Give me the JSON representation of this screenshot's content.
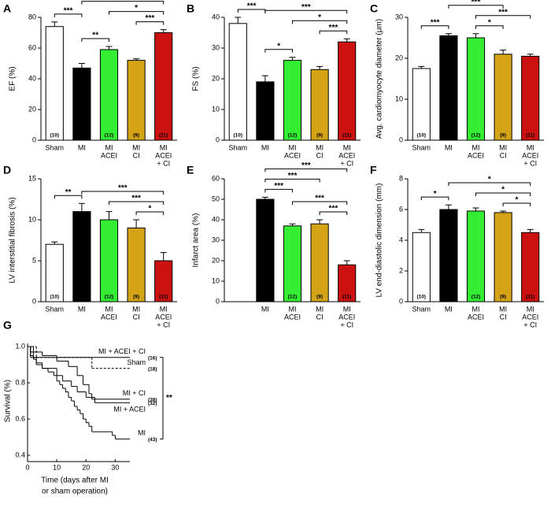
{
  "chart_data": [
    {
      "type": "bar",
      "panel": "A",
      "ylabel": "EF (%)",
      "categories": [
        [
          "Sham"
        ],
        [
          "MI"
        ],
        [
          "MI",
          "ACEI"
        ],
        [
          "MI",
          "CI"
        ],
        [
          "MI",
          "ACEI",
          "+ CI"
        ]
      ],
      "values": [
        74,
        47,
        59,
        52,
        70
      ],
      "errors": [
        3,
        3,
        2,
        1,
        2
      ],
      "colors": [
        "#ffffff",
        "#000000",
        "#33ee33",
        "#d4a316",
        "#cc1111"
      ],
      "n_labels": [
        "(10)",
        "(16)",
        "(12)",
        "(9)",
        "(11)"
      ],
      "brackets": [
        {
          "between": [
            0,
            1
          ],
          "label": "***"
        },
        {
          "between": [
            1,
            2
          ],
          "label": "**"
        },
        {
          "between": [
            3,
            4
          ],
          "label": "***"
        },
        {
          "between": [
            2,
            4
          ],
          "label": "*"
        },
        {
          "between": [
            1,
            4
          ],
          "label": "***"
        }
      ],
      "ylim": [
        0,
        80
      ],
      "yticks": [
        0,
        20,
        40,
        60,
        80
      ]
    },
    {
      "type": "bar",
      "panel": "B",
      "ylabel": "FS (%)",
      "categories": [
        [
          "Sham"
        ],
        [
          "MI"
        ],
        [
          "MI",
          "ACEI"
        ],
        [
          "MI",
          "CI"
        ],
        [
          "MI",
          "ACEI",
          "+ CI"
        ]
      ],
      "values": [
        38,
        19,
        26,
        23,
        32
      ],
      "errors": [
        2,
        2,
        1,
        1,
        1
      ],
      "colors": [
        "#ffffff",
        "#000000",
        "#33ee33",
        "#d4a316",
        "#cc1111"
      ],
      "n_labels": [
        "(10)",
        "(16)",
        "(12)",
        "(9)",
        "(11)"
      ],
      "brackets": [
        {
          "between": [
            0,
            1
          ],
          "label": "***"
        },
        {
          "between": [
            1,
            2
          ],
          "label": "*"
        },
        {
          "between": [
            3,
            4
          ],
          "label": "***"
        },
        {
          "between": [
            2,
            4
          ],
          "label": "*"
        },
        {
          "between": [
            1,
            4
          ],
          "label": "***"
        }
      ],
      "ylim": [
        0,
        40
      ],
      "yticks": [
        0,
        10,
        20,
        30,
        40
      ]
    },
    {
      "type": "bar",
      "panel": "C",
      "ylabel": "Avg. cardiomyocyte diameter (μm)",
      "categories": [
        [
          "Sham"
        ],
        [
          "MI"
        ],
        [
          "MI",
          "ACEI"
        ],
        [
          "MI",
          "CI"
        ],
        [
          "MI",
          "ACEI",
          "+ CI"
        ]
      ],
      "values": [
        17.5,
        25.5,
        25,
        21,
        20.5
      ],
      "errors": [
        0.5,
        0.5,
        1,
        1,
        0.5
      ],
      "colors": [
        "#ffffff",
        "#000000",
        "#33ee33",
        "#d4a316",
        "#cc1111"
      ],
      "n_labels": [
        "(10)",
        "(16)",
        "(12)",
        "(9)",
        "(11)"
      ],
      "brackets": [
        {
          "between": [
            0,
            1
          ],
          "label": "***"
        },
        {
          "between": [
            2,
            3
          ],
          "label": "*"
        },
        {
          "between": [
            2,
            4
          ],
          "label": "***"
        },
        {
          "between": [
            1,
            3
          ],
          "label": "***"
        },
        {
          "between": [
            1,
            4
          ],
          "label": "***"
        }
      ],
      "ylim": [
        0,
        30
      ],
      "yticks": [
        0,
        10,
        20,
        30
      ]
    },
    {
      "type": "bar",
      "panel": "D",
      "ylabel": "LV interstitial fibrosis (%)",
      "categories": [
        [
          "Sham"
        ],
        [
          "MI"
        ],
        [
          "MI",
          "ACEI"
        ],
        [
          "MI",
          "CI"
        ],
        [
          "MI",
          "ACEI",
          "+ CI"
        ]
      ],
      "values": [
        7,
        11,
        10,
        9,
        5
      ],
      "errors": [
        0.3,
        1,
        1,
        1,
        1
      ],
      "colors": [
        "#ffffff",
        "#000000",
        "#33ee33",
        "#d4a316",
        "#cc1111"
      ],
      "n_labels": [
        "(10)",
        "(16)",
        "(12)",
        "(9)",
        "(11)"
      ],
      "brackets": [
        {
          "between": [
            0,
            1
          ],
          "label": "**"
        },
        {
          "between": [
            3,
            4
          ],
          "label": "*"
        },
        {
          "between": [
            2,
            4
          ],
          "label": "***"
        },
        {
          "between": [
            1,
            4
          ],
          "label": "***"
        }
      ],
      "ylim": [
        0,
        15
      ],
      "yticks": [
        0,
        5,
        10,
        15
      ]
    },
    {
      "type": "bar",
      "panel": "E",
      "ylabel": "Infarct area (%)",
      "categories": [
        null,
        [
          "MI"
        ],
        [
          "MI",
          "ACEI"
        ],
        [
          "MI",
          "CI"
        ],
        [
          "MI",
          "ACEI",
          "+ CI"
        ]
      ],
      "values": [
        null,
        50,
        37,
        38,
        18
      ],
      "errors": [
        null,
        1,
        1,
        2,
        2
      ],
      "colors": [
        null,
        "#000000",
        "#33ee33",
        "#d4a316",
        "#cc1111"
      ],
      "n_labels": [
        null,
        "(16)",
        "(12)",
        "(9)",
        "(11)"
      ],
      "brackets": [
        {
          "between": [
            3,
            4
          ],
          "label": "***"
        },
        {
          "between": [
            2,
            4
          ],
          "label": "***"
        },
        {
          "between": [
            1,
            2
          ],
          "label": "***"
        },
        {
          "between": [
            1,
            3
          ],
          "label": "***"
        },
        {
          "between": [
            1,
            4
          ],
          "label": "***"
        }
      ],
      "ylim": [
        0,
        60
      ],
      "yticks": [
        0,
        10,
        20,
        30,
        40,
        50,
        60
      ]
    },
    {
      "type": "bar",
      "panel": "F",
      "ylabel": "LV end-diastolic dimension (mm)",
      "categories": [
        [
          "Sham"
        ],
        [
          "MI"
        ],
        [
          "MI",
          "ACEI"
        ],
        [
          "MI",
          "CI"
        ],
        [
          "MI",
          "ACEI",
          "+ CI"
        ]
      ],
      "values": [
        4.5,
        6,
        5.9,
        5.8,
        4.5
      ],
      "errors": [
        0.2,
        0.3,
        0.2,
        0.1,
        0.2
      ],
      "colors": [
        "#ffffff",
        "#000000",
        "#33ee33",
        "#d4a316",
        "#cc1111"
      ],
      "n_labels": [
        "(10)",
        "(16)",
        "(12)",
        "(9)",
        "(11)"
      ],
      "brackets": [
        {
          "between": [
            0,
            1
          ],
          "label": "*"
        },
        {
          "between": [
            3,
            4
          ],
          "label": "*"
        },
        {
          "between": [
            2,
            4
          ],
          "label": "*"
        },
        {
          "between": [
            1,
            4
          ],
          "label": "*"
        }
      ],
      "ylim": [
        0,
        8
      ],
      "yticks": [
        0,
        2,
        4,
        6,
        8
      ]
    },
    {
      "type": "line",
      "panel": "G",
      "ylabel": "Survival (%)",
      "xlabel": [
        "Time (days after MI",
        "or sham operation)"
      ],
      "xlim": [
        0,
        35
      ],
      "xticks": [
        0,
        10,
        20,
        30
      ],
      "ylim": [
        0.4,
        1.0
      ],
      "yticks": [
        {
          "value": 1,
          "label": "1.0"
        },
        0.8,
        0.6,
        0.4
      ],
      "significance": "**",
      "series": [
        {
          "name": "MI + ACEI + CI",
          "color": "#cc1111",
          "dashed": false,
          "n_label": "(16)",
          "x": [
            0,
            1
          ],
          "values": [
            1,
            0.94
          ]
        },
        {
          "name": "Sham",
          "color": "#000000",
          "dashed": true,
          "n_label": "(18)",
          "x": [
            0,
            3,
            22
          ],
          "values": [
            1,
            0.94,
            0.88
          ]
        },
        {
          "name": "MI + CI",
          "color": "#d4a316",
          "dashed": false,
          "n_label": "(38)",
          "x": [
            0,
            2,
            5,
            10,
            14,
            17,
            19,
            21,
            22
          ],
          "values": [
            1,
            0.97,
            0.95,
            0.92,
            0.89,
            0.84,
            0.79,
            0.74,
            0.71
          ]
        },
        {
          "name": "MI + ACEI",
          "color": "#33ee33",
          "dashed": false,
          "n_label": "(32)",
          "x": [
            0,
            1,
            2,
            3,
            5,
            10,
            12,
            15,
            17,
            20,
            23
          ],
          "values": [
            1,
            0.97,
            0.94,
            0.91,
            0.88,
            0.84,
            0.81,
            0.78,
            0.75,
            0.72,
            0.69
          ]
        },
        {
          "name": "MI",
          "color": "#000000",
          "dashed": false,
          "n_label": "(43)",
          "x": [
            0,
            1,
            2,
            3,
            5,
            7,
            9,
            10,
            11,
            12,
            13,
            14,
            15,
            16,
            17,
            18,
            19,
            20,
            21,
            22,
            29,
            30
          ],
          "values": [
            1,
            0.95,
            0.93,
            0.9,
            0.88,
            0.86,
            0.84,
            0.81,
            0.79,
            0.77,
            0.75,
            0.72,
            0.7,
            0.67,
            0.65,
            0.63,
            0.6,
            0.58,
            0.56,
            0.53,
            0.51,
            0.49
          ]
        }
      ]
    }
  ]
}
